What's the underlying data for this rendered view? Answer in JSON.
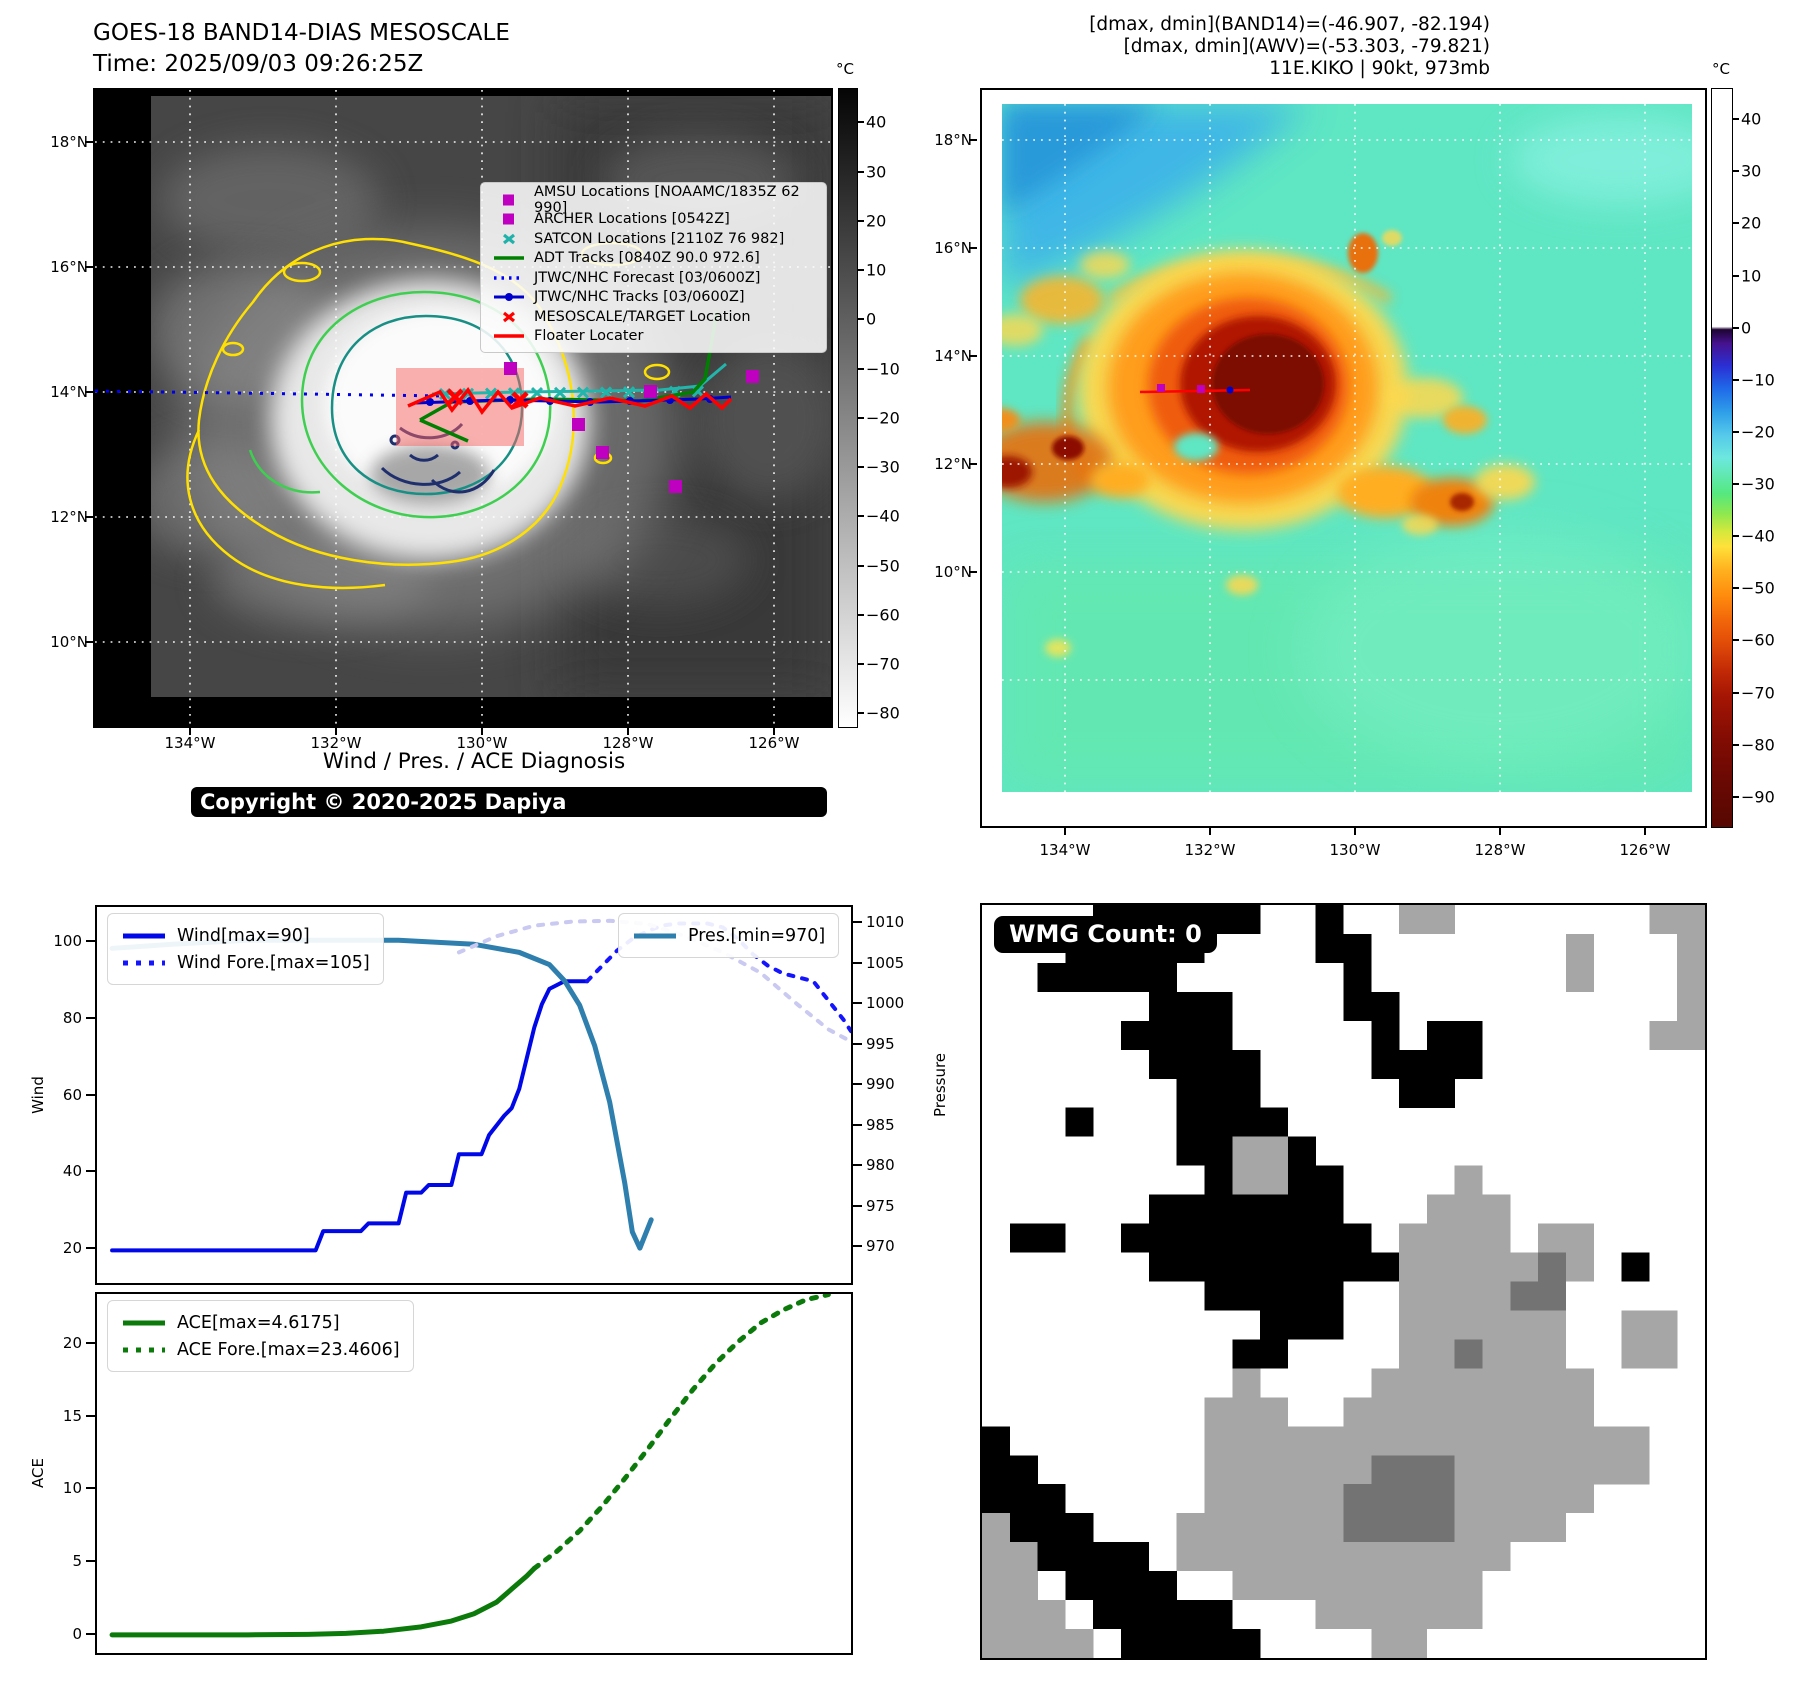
{
  "band14_panel": {
    "title_line1": "GOES-18 BAND14-DIAS MESOSCALE",
    "title_line2": "Time: 2025/09/03 09:26:25Z",
    "copyright": "Copyright © 2020-2025 Dapiya",
    "colorbar_unit": "°C",
    "colorbar_ticks": [
      "40",
      "30",
      "20",
      "10",
      "0",
      "−10",
      "−20",
      "−30",
      "−40",
      "−50",
      "−60",
      "−70",
      "−80"
    ],
    "lat_labels": [
      "18°N",
      "16°N",
      "14°N",
      "12°N",
      "10°N"
    ],
    "lon_labels": [
      "134°W",
      "132°W",
      "130°W",
      "128°W",
      "126°W"
    ],
    "legend": [
      {
        "label": "AMSU Locations [NOAAMC/1835Z 62 990]",
        "marker": "square",
        "color": "#c000c0"
      },
      {
        "label": "ARCHER Locations [0542Z]",
        "marker": "square",
        "color": "#c000c0"
      },
      {
        "label": "SATCON Locations [2110Z 76 982]",
        "marker": "x",
        "color": "#20b2aa"
      },
      {
        "label": "ADT Tracks [0840Z 90.0 972.6]",
        "marker": "line",
        "color": "#008000"
      },
      {
        "label": "JTWC/NHC Forecast [03/0600Z]",
        "marker": "dotted",
        "color": "#0000ff"
      },
      {
        "label": "JTWC/NHC Tracks [03/0600Z]",
        "marker": "line-dot",
        "color": "#0000cd"
      },
      {
        "label": "MESOSCALE/TARGET Location",
        "marker": "x",
        "color": "#ff0000"
      },
      {
        "label": "Floater Locater",
        "marker": "line",
        "color": "#ff0000"
      }
    ]
  },
  "awv_panel": {
    "header_line1": "[dmax, dmin](BAND14)=(-46.907, -82.194)",
    "header_line2": "[dmax, dmin](AWV)=(-53.303, -79.821)",
    "header_line3": "11E.KIKO | 90kt, 973mb",
    "colorbar_unit": "°C",
    "colorbar_ticks": [
      "40",
      "30",
      "20",
      "10",
      "0",
      "−10",
      "−20",
      "−30",
      "−40",
      "−50",
      "−60",
      "−70",
      "−80",
      "−90"
    ],
    "lat_labels": [
      "18°N",
      "16°N",
      "14°N",
      "12°N",
      "10°N"
    ],
    "lon_labels": [
      "134°W",
      "132°W",
      "130°W",
      "128°W",
      "126°W"
    ]
  },
  "diagnosis_title": "Wind / Pres. / ACE Diagnosis",
  "chart_data": [
    {
      "id": "wind_pres",
      "type": "line",
      "title": "Wind / Pres. / ACE Diagnosis",
      "ylabel_left": "Wind",
      "ylabel_right": "Pressure",
      "yticks_left": [
        "20",
        "40",
        "60",
        "80",
        "100"
      ],
      "yticks_left_values": [
        20,
        40,
        60,
        80,
        100
      ],
      "yticks_right": [
        "1010",
        "1005",
        "1000",
        "995",
        "990",
        "985",
        "980",
        "975",
        "970"
      ],
      "yticks_right_values": [
        1010,
        1005,
        1000,
        995,
        990,
        985,
        980,
        975,
        970
      ],
      "ylim_left": [
        11.5,
        109.3
      ],
      "ylim_right": [
        965.7,
        1012.1
      ],
      "xlim": [
        0,
        100
      ],
      "grid": false,
      "legend_position": "upper-left and upper-right",
      "series": [
        {
          "name": "Wind[max=90]",
          "axis": "left",
          "color": "#0008e8",
          "dash": "solid",
          "width": 4,
          "x": [
            2,
            29,
            30,
            35,
            36,
            40,
            41,
            43,
            44,
            47,
            48,
            51,
            52,
            54,
            55,
            56,
            57,
            58,
            59,
            60,
            62,
            65
          ],
          "y": [
            20,
            20,
            25,
            25,
            27,
            27,
            35,
            35,
            37,
            37,
            45,
            45,
            50,
            55,
            57,
            62,
            70,
            78,
            84,
            88,
            90,
            90
          ]
        },
        {
          "name": "Wind Fore.[max=105]",
          "axis": "left",
          "color": "#1414ff",
          "dash": "dot",
          "width": 4,
          "x": [
            65,
            67,
            69,
            71,
            73,
            75,
            77,
            79,
            81,
            83,
            85,
            87,
            89,
            91,
            93,
            95,
            97,
            99,
            100
          ],
          "y": [
            90,
            94,
            98,
            101,
            103,
            104.5,
            105,
            105,
            105,
            104,
            101,
            97,
            94,
            92,
            91,
            90,
            85,
            80,
            77
          ]
        },
        {
          "name": "Pres.[min=970]",
          "axis": "right",
          "color": "#2e7fad",
          "dash": "solid",
          "width": 5,
          "x": [
            2,
            10,
            20,
            30,
            40,
            50,
            56,
            60,
            62,
            64,
            66,
            68,
            70,
            71,
            72,
            73.5
          ],
          "y": [
            1007,
            1007.5,
            1008,
            1008,
            1008,
            1007.5,
            1006.5,
            1005,
            1003,
            1000,
            995,
            988,
            978,
            972,
            970,
            973.5
          ]
        },
        {
          "name": "pres-forecast",
          "axis": "right",
          "color": "#c9c9f1",
          "dash": "dot",
          "width": 4,
          "x": [
            48,
            53,
            58,
            63,
            68,
            73,
            78,
            83,
            88,
            93,
            97,
            100
          ],
          "y": [
            1006.5,
            1008.5,
            1009.8,
            1010.3,
            1010.4,
            1010,
            1008.5,
            1006.5,
            1004,
            1000,
            997,
            995.5
          ]
        }
      ]
    },
    {
      "id": "ace",
      "type": "line",
      "ylabel_left": "ACE",
      "yticks_left": [
        "0",
        "5",
        "10",
        "15",
        "20"
      ],
      "yticks_left_values": [
        0,
        5,
        10,
        15,
        20
      ],
      "ylim_left": [
        -1.2,
        23.5
      ],
      "xlim": [
        0,
        100
      ],
      "grid": false,
      "legend_position": "upper-left",
      "series": [
        {
          "name": "ACE[max=4.6175]",
          "axis": "left",
          "color": "#0b7a0b",
          "dash": "solid",
          "width": 5,
          "x": [
            2,
            10,
            20,
            28,
            33,
            38,
            43,
            47,
            50,
            53,
            55,
            57,
            58
          ],
          "y": [
            0.05,
            0.05,
            0.05,
            0.08,
            0.15,
            0.3,
            0.6,
            1.0,
            1.5,
            2.3,
            3.2,
            4.1,
            4.62
          ]
        },
        {
          "name": "ACE Fore.[max=23.4606]",
          "axis": "left",
          "color": "#0b7a0b",
          "dash": "dot",
          "width": 5,
          "x": [
            58,
            61,
            64,
            67,
            70,
            73,
            76,
            79,
            82,
            85,
            88,
            91,
            94,
            97
          ],
          "y": [
            4.62,
            5.8,
            7.2,
            8.9,
            10.8,
            12.8,
            14.9,
            16.9,
            18.7,
            20.2,
            21.5,
            22.4,
            23.1,
            23.46
          ]
        }
      ]
    }
  ],
  "wmg_panel": {
    "badge": "WMG Count: 0",
    "palette": {
      "k": "#000000",
      "g": "#a6a6a6",
      "d": "#737373",
      "w": "#ffffff"
    },
    "grid": [
      "....kkkkkk..k..gg.......gg",
      "...kkkkk....kk.......g...g",
      "..kkkkk......k.......g...g",
      "......kkk....kk..........g",
      ".....kkkk.....k.kk......gg",
      "......kkkk....kkkk........",
      ".......kkk.....kk.........",
      "...k...kkkk...............",
      ".......kkggk..............",
      "........kggkk....g........",
      "......kkkkkkk...ggg.......",
      ".kk..kkkkkkkkk.gggg.gg....",
      "......kkkkkkkkkgggggdg.k..",
      "........kkkkk..ggggdd.....",
      "..........kkk..gggggg..gg.",
      ".........kk....ggdggg..gg.",
      ".........g....gggggggg....",
      "........ggg..ggggggggg....",
      "k.......gggggggggggggggg..",
      "kk......ggggggdddggggggg..",
      "kkk.....gggggddddggggg....",
      "gkkk...ggggggddddgggg.....",
      "ggkkkk.gggggggggggg.......",
      "gg.kkkk..ggggggggg........",
      "ggg.kkkkk...gggggg........",
      "gggg.kkkkk....gg.........."
    ]
  }
}
